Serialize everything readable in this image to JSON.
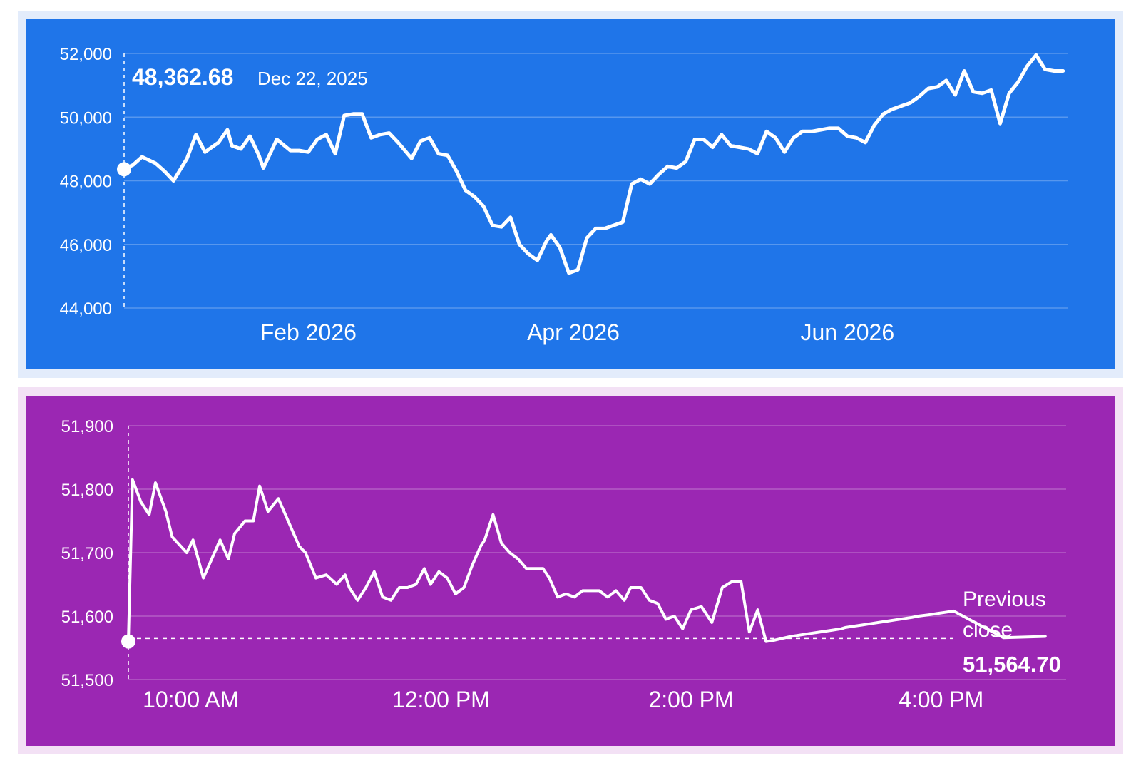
{
  "colors": {
    "top_bg": "#1f75e9",
    "bottom_bg": "#9b27b3",
    "line": "#ffffff"
  },
  "chart_data": [
    {
      "type": "line",
      "title": "",
      "grid": true,
      "x_tick_labels": [
        "Feb 2026",
        "Apr 2026",
        "Jun 2026"
      ],
      "x_tick_dates": [
        "2026-02-01",
        "2026-04-01",
        "2026-06-01"
      ],
      "y_ticks": [
        44000,
        46000,
        48000,
        50000,
        52000
      ],
      "y_tick_labels": [
        "44,000",
        "46,000",
        "48,000",
        "50,000",
        "52,000"
      ],
      "ylim": [
        44000,
        52000
      ],
      "xlim": [
        "2025-12-22",
        "2026-07-20"
      ],
      "tooltip": {
        "value": "48,362.68",
        "date": "Dec 22, 2025"
      },
      "series": [
        {
          "x": [
            "2025-12-22",
            "2025-12-24",
            "2025-12-26",
            "2025-12-29",
            "2025-12-31",
            "2026-01-02",
            "2026-01-05",
            "2026-01-07",
            "2026-01-09",
            "2026-01-12",
            "2026-01-14",
            "2026-01-15",
            "2026-01-17",
            "2026-01-19",
            "2026-01-21",
            "2026-01-22",
            "2026-01-25",
            "2026-01-28",
            "2026-01-30",
            "2026-02-01",
            "2026-02-03",
            "2026-02-05",
            "2026-02-07",
            "2026-02-09",
            "2026-02-11",
            "2026-02-13",
            "2026-02-15",
            "2026-02-17",
            "2026-02-19",
            "2026-02-21",
            "2026-02-24",
            "2026-02-26",
            "2026-02-28",
            "2026-03-02",
            "2026-03-04",
            "2026-03-06",
            "2026-03-08",
            "2026-03-10",
            "2026-03-12",
            "2026-03-14",
            "2026-03-16",
            "2026-03-18",
            "2026-03-20",
            "2026-03-22",
            "2026-03-24",
            "2026-03-26",
            "2026-03-27",
            "2026-03-29",
            "2026-03-31",
            "2026-04-02",
            "2026-04-04",
            "2026-04-06",
            "2026-04-08",
            "2026-04-10",
            "2026-04-12",
            "2026-04-14",
            "2026-04-16",
            "2026-04-18",
            "2026-04-20",
            "2026-04-22",
            "2026-04-24",
            "2026-04-26",
            "2026-04-28",
            "2026-04-30",
            "2026-05-02",
            "2026-05-04",
            "2026-05-06",
            "2026-05-08",
            "2026-05-10",
            "2026-05-12",
            "2026-05-14",
            "2026-05-16",
            "2026-05-18",
            "2026-05-20",
            "2026-05-22",
            "2026-05-24",
            "2026-05-26",
            "2026-05-28",
            "2026-05-30",
            "2026-06-01",
            "2026-06-03",
            "2026-06-05",
            "2026-06-07",
            "2026-06-09",
            "2026-06-11",
            "2026-06-13",
            "2026-06-15",
            "2026-06-17",
            "2026-06-19",
            "2026-06-21",
            "2026-06-23",
            "2026-06-25",
            "2026-06-27",
            "2026-06-29",
            "2026-07-01",
            "2026-07-03",
            "2026-07-05",
            "2026-07-07",
            "2026-07-09",
            "2026-07-11",
            "2026-07-13",
            "2026-07-15",
            "2026-07-17",
            "2026-07-19"
          ],
          "y": [
            48362.68,
            48500,
            48750,
            48550,
            48300,
            48000,
            48700,
            49450,
            48900,
            49200,
            49600,
            49100,
            49000,
            49400,
            48800,
            48400,
            49300,
            48950,
            48950,
            48900,
            49300,
            49450,
            48850,
            50050,
            50100,
            50100,
            49350,
            49450,
            49500,
            49200,
            48700,
            49250,
            49350,
            48850,
            48800,
            48300,
            47700,
            47500,
            47200,
            46600,
            46550,
            46850,
            46000,
            45700,
            45500,
            46100,
            46300,
            45900,
            45100,
            45200,
            46200,
            46500,
            46500,
            46600,
            46700,
            47900,
            48050,
            47900,
            48200,
            48450,
            48400,
            48600,
            49300,
            49300,
            49050,
            49450,
            49100,
            49050,
            49000,
            48850,
            49550,
            49350,
            48900,
            49350,
            49550,
            49550,
            49600,
            49650,
            49650,
            49400,
            49350,
            49200,
            49750,
            50100,
            50250,
            50350,
            50450,
            50650,
            50900,
            50950,
            51150,
            50700,
            51450,
            50800,
            50750,
            50850,
            49800,
            50750,
            51100,
            51600,
            51950,
            51500,
            51450,
            51450
          ]
        }
      ]
    },
    {
      "type": "line",
      "title": "",
      "grid": true,
      "x_tick_labels": [
        "10:00 AM",
        "12:00 PM",
        "2:00 PM",
        "4:00 PM"
      ],
      "x_tick_hours": [
        10,
        12,
        14,
        16
      ],
      "y_ticks": [
        51500,
        51600,
        51700,
        51800,
        51900
      ],
      "y_tick_labels": [
        "51,500",
        "51,600",
        "51,700",
        "51,800",
        "51,900"
      ],
      "ylim": [
        51500,
        51900
      ],
      "xlim": [
        "9:30 AM",
        "5:00 PM"
      ],
      "previous_close": {
        "label_line1": "Previous",
        "label_line2": "close",
        "value_text": "51,564.70",
        "value": 51564.7
      },
      "series": [
        {
          "x": [
            "9:30",
            "9:32",
            "9:36",
            "9:40",
            "9:43",
            "9:48",
            "9:51",
            "9:58",
            "10:01",
            "10:06",
            "10:10",
            "10:14",
            "10:18",
            "10:21",
            "10:26",
            "10:30",
            "10:33",
            "10:37",
            "10:42",
            "10:46",
            "10:52",
            "10:55",
            "11:00",
            "11:05",
            "11:10",
            "11:14",
            "11:16",
            "11:20",
            "11:24",
            "11:28",
            "11:32",
            "11:36",
            "11:40",
            "11:44",
            "11:48",
            "11:52",
            "11:55",
            "11:59",
            "12:03",
            "12:07",
            "12:11",
            "12:15",
            "12:19",
            "12:21",
            "12:25",
            "12:29",
            "12:33",
            "12:37",
            "12:41",
            "12:45",
            "12:49",
            "12:52",
            "12:56",
            "13:00",
            "13:04",
            "13:08",
            "13:12",
            "13:16",
            "13:20",
            "13:24",
            "13:28",
            "13:31",
            "13:36",
            "13:40",
            "13:44",
            "13:48",
            "13:52",
            "13:56",
            "14:00",
            "14:05",
            "14:10",
            "14:15",
            "14:20",
            "14:24",
            "14:28",
            "14:32",
            "14:36",
            "14:40",
            "14:44",
            "14:48",
            "14:52",
            "14:56",
            "15:00",
            "15:04",
            "15:08",
            "15:12",
            "15:14",
            "15:18",
            "15:22",
            "15:26",
            "15:30",
            "15:34",
            "15:38",
            "15:42",
            "15:46",
            "15:49",
            "15:54",
            "15:58",
            "16:02",
            "16:06",
            "16:30",
            "16:50"
          ],
          "y": [
            51560,
            51815,
            51780,
            51760,
            51810,
            51765,
            51725,
            51700,
            51720,
            51660,
            51690,
            51720,
            51690,
            51730,
            51750,
            51750,
            51805,
            51765,
            51785,
            51755,
            51710,
            51700,
            51660,
            51665,
            51650,
            51665,
            51645,
            51625,
            51645,
            51670,
            51630,
            51625,
            51645,
            51645,
            51650,
            51675,
            51650,
            51670,
            51660,
            51635,
            51645,
            51680,
            51710,
            51720,
            51760,
            51715,
            51700,
            51690,
            51675,
            51675,
            51675,
            51660,
            51630,
            51635,
            51630,
            51640,
            51640,
            51640,
            51630,
            51640,
            51625,
            51645,
            51645,
            51625,
            51620,
            51595,
            51600,
            51580,
            51610,
            51615,
            51590,
            51645,
            51655,
            51655,
            51575,
            51610,
            51560,
            51562,
            51565,
            51568,
            51570,
            51572,
            51574,
            51576,
            51578,
            51580,
            51582,
            51584,
            51586,
            51588,
            51590,
            51592,
            51594,
            51596,
            51598,
            51600,
            51602,
            51604,
            51606,
            51608,
            51566,
            51568
          ]
        }
      ]
    }
  ]
}
